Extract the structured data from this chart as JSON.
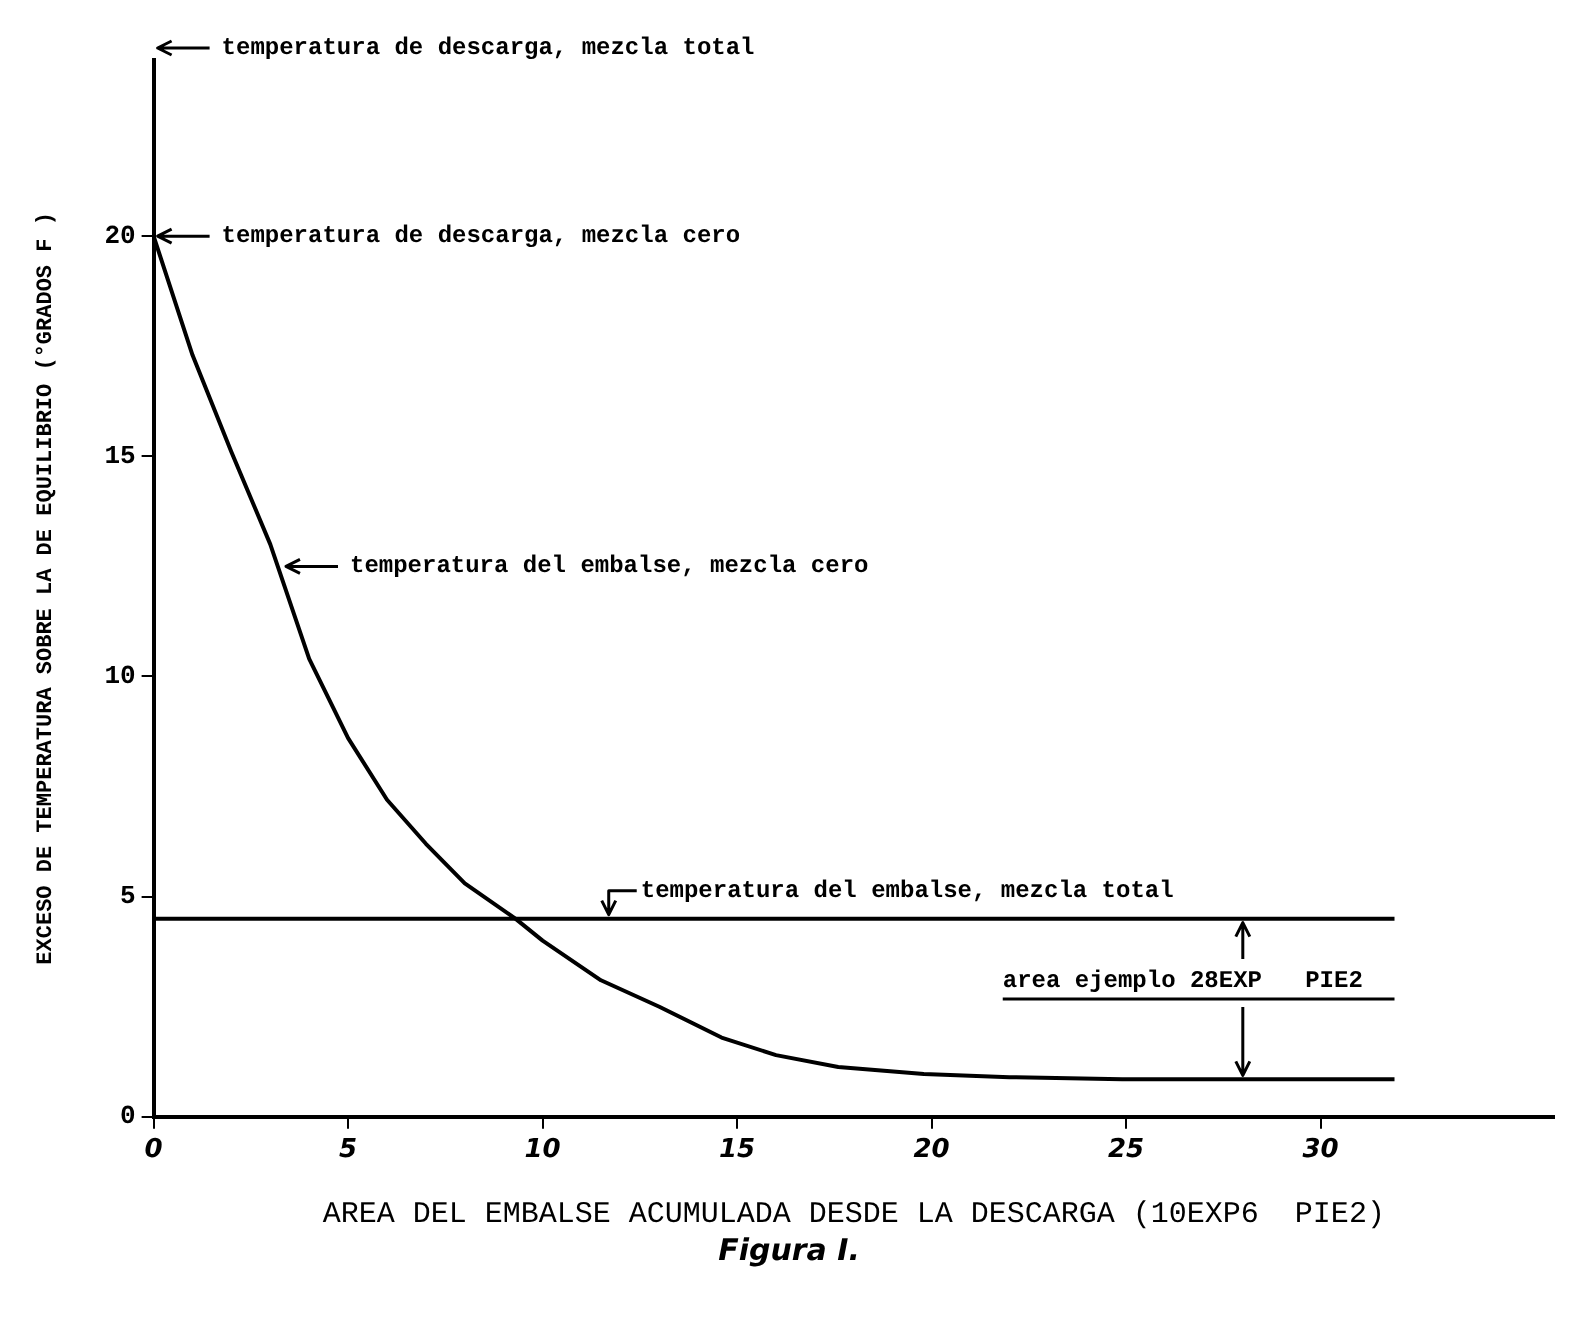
{
  "chart_data": {
    "type": "line",
    "xlabel": "AREA DEL EMBALSE ACUMULADA DESDE LA DESCARGA (10EXP6  PIE2)",
    "ylabel": "EXCESO DE TEMPERATURA SOBRE LA DE EQUILIBRIO (°GRADOS F )",
    "xlim": [
      0,
      36
    ],
    "ylim": [
      0,
      24
    ],
    "xticks": [
      0,
      5,
      10,
      15,
      20,
      25,
      30
    ],
    "yticks": [
      0,
      5,
      10,
      15,
      20
    ],
    "grid": false,
    "legend": false,
    "marker": "none",
    "line_style": "solid",
    "series": [
      {
        "color": "#000000",
        "x": [
          0,
          1,
          2,
          3,
          4,
          5,
          6,
          7,
          8,
          9.3,
          10,
          11.5,
          13,
          14.6,
          16,
          17.6,
          19.8,
          22,
          24.9,
          31.9
        ],
        "values": [
          20,
          17.3,
          15.1,
          13,
          10.4,
          8.6,
          7.2,
          6.2,
          5.3,
          4.5,
          4,
          3.1,
          2.5,
          1.8,
          1.4,
          1.13,
          0.97,
          0.9,
          0.85,
          0.85
        ]
      },
      {
        "color": "#000000",
        "x": [
          0,
          31.9
        ],
        "values": [
          4.5,
          4.5
        ]
      }
    ],
    "annotations": [
      "temperatura de descarga, mezcla total",
      {
        "text": "temperatura de descarga, mezcla cero",
        "x": 0,
        "y": 20
      },
      {
        "text": "temperatura del embalse, mezcla cero",
        "x": 3.3,
        "y": 12.5
      },
      {
        "text": "temperatura del embalse, mezcla total",
        "x": 11.7,
        "y": 4.5
      },
      {
        "text": "area ejemplo 28EXP   PIE2",
        "x": 28,
        "y": 0.85
      },
      "Figura I."
    ]
  }
}
